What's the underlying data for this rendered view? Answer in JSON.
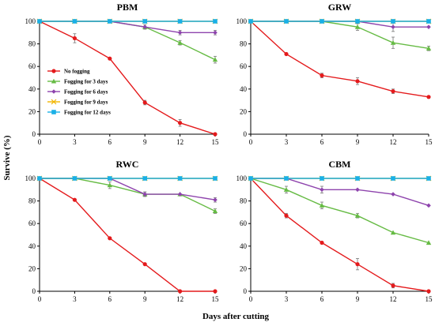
{
  "chart_data": {
    "type": "line",
    "ylabel": "Survive (%)",
    "xlabel": "Days after cutting",
    "xlim": [
      0,
      15
    ],
    "ylim": [
      0,
      100
    ],
    "xticks": [
      0,
      3,
      6,
      9,
      12,
      15
    ],
    "yticks": [
      0,
      20,
      40,
      60,
      80,
      100
    ],
    "legend_placement": "inside first panel, left-center",
    "series_styles": [
      {
        "name": "No fogging",
        "color": "#e41a1c",
        "marker": "circle"
      },
      {
        "name": "Fogging for 3 days",
        "color": "#66bb44",
        "marker": "triangle"
      },
      {
        "name": "Fogging for 6 days",
        "color": "#8e44ad",
        "marker": "diamond"
      },
      {
        "name": "Fogging for 9 days",
        "color": "#f2b500",
        "marker": "cross"
      },
      {
        "name": "Fogging for 12 days",
        "color": "#1ab0e6",
        "marker": "square"
      }
    ],
    "panels": [
      {
        "title": "PBM",
        "series": [
          {
            "name": "No fogging",
            "x": [
              0,
              3,
              6,
              9,
              12,
              15
            ],
            "y": [
              100,
              85,
              67,
              28,
              10,
              0
            ],
            "err": [
              0,
              4,
              0,
              2,
              3,
              0
            ]
          },
          {
            "name": "Fogging for 3 days",
            "x": [
              0,
              3,
              6,
              9,
              12,
              15
            ],
            "y": [
              100,
              100,
              100,
              95,
              81,
              66
            ],
            "err": [
              0,
              0,
              0,
              2,
              2,
              3
            ]
          },
          {
            "name": "Fogging for 6 days",
            "x": [
              0,
              3,
              6,
              9,
              12,
              15
            ],
            "y": [
              100,
              100,
              100,
              95,
              90,
              90
            ],
            "err": [
              0,
              0,
              0,
              0,
              2,
              2
            ]
          },
          {
            "name": "Fogging for 9 days",
            "x": [
              0,
              3,
              6,
              9,
              12,
              15
            ],
            "y": [
              100,
              100,
              100,
              100,
              100,
              100
            ],
            "err": [
              0,
              0,
              0,
              0,
              0,
              0
            ]
          },
          {
            "name": "Fogging for 12 days",
            "x": [
              0,
              3,
              6,
              9,
              12,
              15
            ],
            "y": [
              100,
              100,
              100,
              100,
              100,
              100
            ],
            "err": [
              0,
              0,
              0,
              0,
              0,
              0
            ]
          }
        ]
      },
      {
        "title": "GRW",
        "series": [
          {
            "name": "No fogging",
            "x": [
              0,
              3,
              6,
              9,
              12,
              15
            ],
            "y": [
              100,
              71,
              52,
              47,
              38,
              33
            ],
            "err": [
              0,
              1,
              2,
              3,
              2,
              1
            ]
          },
          {
            "name": "Fogging for 3 days",
            "x": [
              0,
              3,
              6,
              9,
              12,
              15
            ],
            "y": [
              100,
              100,
              100,
              95,
              81,
              76
            ],
            "err": [
              0,
              0,
              0,
              3,
              5,
              2
            ]
          },
          {
            "name": "Fogging for 6 days",
            "x": [
              0,
              3,
              6,
              9,
              12,
              15
            ],
            "y": [
              100,
              100,
              100,
              100,
              95,
              95
            ],
            "err": [
              0,
              0,
              0,
              0,
              4,
              0
            ]
          },
          {
            "name": "Fogging for 9 days",
            "x": [
              0,
              3,
              6,
              9,
              12,
              15
            ],
            "y": [
              100,
              100,
              100,
              100,
              100,
              100
            ],
            "err": [
              0,
              0,
              0,
              0,
              0,
              0
            ]
          },
          {
            "name": "Fogging for 12 days",
            "x": [
              0,
              3,
              6,
              9,
              12,
              15
            ],
            "y": [
              100,
              100,
              100,
              100,
              100,
              100
            ],
            "err": [
              0,
              0,
              0,
              0,
              0,
              0
            ]
          }
        ]
      },
      {
        "title": "RWC",
        "series": [
          {
            "name": "No fogging",
            "x": [
              0,
              3,
              6,
              9,
              12,
              15
            ],
            "y": [
              100,
              81,
              47,
              24,
              0,
              0
            ],
            "err": [
              0,
              0,
              0,
              0,
              0,
              0
            ]
          },
          {
            "name": "Fogging for 3 days",
            "x": [
              0,
              3,
              6,
              9,
              12,
              15
            ],
            "y": [
              100,
              100,
              94,
              86,
              86,
              71
            ],
            "err": [
              0,
              0,
              3,
              2,
              0,
              2
            ]
          },
          {
            "name": "Fogging for 6 days",
            "x": [
              0,
              3,
              6,
              9,
              12,
              15
            ],
            "y": [
              100,
              100,
              100,
              86,
              86,
              81
            ],
            "err": [
              0,
              0,
              0,
              2,
              0,
              2
            ]
          },
          {
            "name": "Fogging for 9 days",
            "x": [
              0,
              3,
              6,
              9,
              12,
              15
            ],
            "y": [
              100,
              100,
              100,
              100,
              100,
              100
            ],
            "err": [
              0,
              0,
              0,
              0,
              0,
              0
            ]
          },
          {
            "name": "Fogging for 12 days",
            "x": [
              0,
              3,
              6,
              9,
              12,
              15
            ],
            "y": [
              100,
              100,
              100,
              100,
              100,
              100
            ],
            "err": [
              0,
              0,
              0,
              0,
              0,
              0
            ]
          }
        ]
      },
      {
        "title": "CBM",
        "series": [
          {
            "name": "No fogging",
            "x": [
              0,
              3,
              6,
              9,
              12,
              15
            ],
            "y": [
              100,
              67,
              43,
              24,
              5,
              0
            ],
            "err": [
              0,
              2,
              0,
              5,
              2,
              0
            ]
          },
          {
            "name": "Fogging for 3 days",
            "x": [
              0,
              3,
              6,
              9,
              12,
              15
            ],
            "y": [
              100,
              90,
              76,
              67,
              52,
              43
            ],
            "err": [
              0,
              3,
              3,
              2,
              0,
              0
            ]
          },
          {
            "name": "Fogging for 6 days",
            "x": [
              0,
              3,
              6,
              9,
              12,
              15
            ],
            "y": [
              100,
              100,
              90,
              90,
              86,
              76
            ],
            "err": [
              0,
              0,
              3,
              0,
              0,
              0
            ]
          },
          {
            "name": "Fogging for 9 days",
            "x": [
              0,
              3,
              6,
              9,
              12,
              15
            ],
            "y": [
              100,
              100,
              100,
              100,
              100,
              100
            ],
            "err": [
              0,
              0,
              0,
              0,
              0,
              0
            ]
          },
          {
            "name": "Fogging for 12 days",
            "x": [
              0,
              3,
              6,
              9,
              12,
              15
            ],
            "y": [
              100,
              100,
              100,
              100,
              100,
              100
            ],
            "err": [
              0,
              0,
              0,
              0,
              0,
              0
            ]
          }
        ]
      }
    ]
  }
}
